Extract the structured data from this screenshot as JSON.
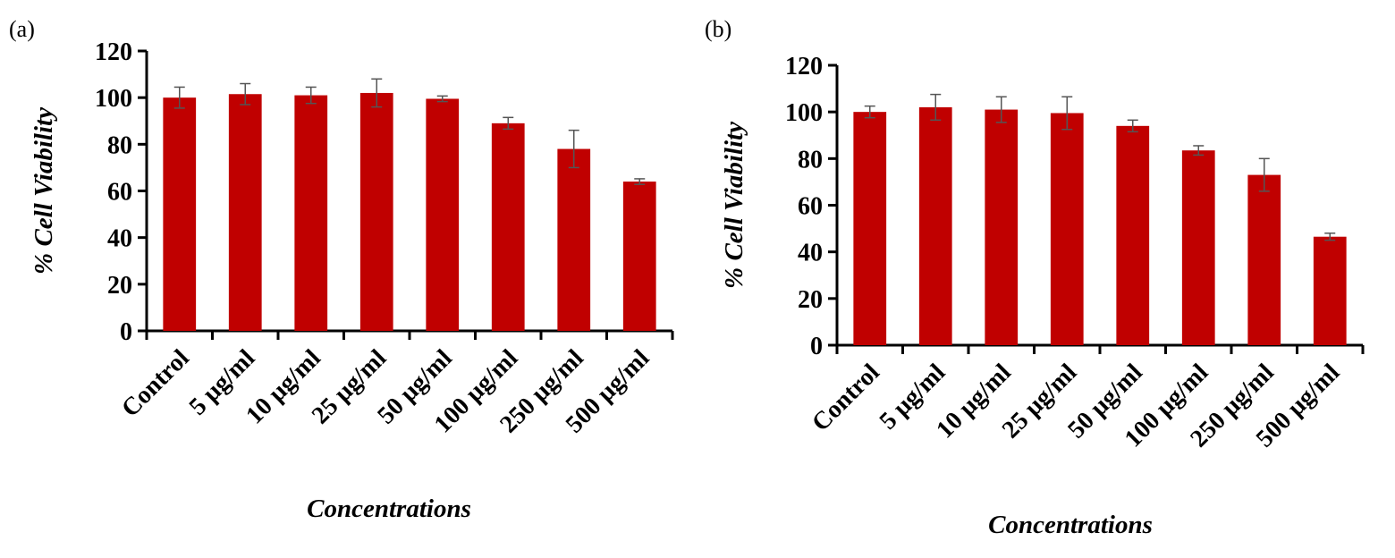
{
  "panels": [
    {
      "label": "(a)"
    },
    {
      "label": "(b)"
    }
  ],
  "colors": {
    "bar": "#c00000",
    "error_bar": "#555555",
    "axis": "#000000"
  },
  "chart_data": [
    {
      "type": "bar",
      "panel": "(a)",
      "categories": [
        "Control",
        "5 µg/ml",
        "10 µg/ml",
        "25 µg/ml",
        "50 µg/ml",
        "100 µg/ml",
        "250 µg/ml",
        "500 µg/ml"
      ],
      "values": [
        100,
        101.5,
        101,
        102,
        99.5,
        89,
        78,
        64
      ],
      "errors": [
        4.5,
        4.5,
        3.5,
        6,
        1.2,
        2.5,
        8,
        1.2
      ],
      "xlabel": "Concentrations",
      "ylabel": "% Cell Viability",
      "ylim": [
        0,
        120
      ],
      "yticks": [
        0,
        20,
        40,
        60,
        80,
        100,
        120
      ],
      "grid": false,
      "legend": false
    },
    {
      "type": "bar",
      "panel": "(b)",
      "categories": [
        "Control",
        "5 µg/ml",
        "10 µg/ml",
        "25 µg/ml",
        "50 µg/ml",
        "100 µg/ml",
        "250 µg/ml",
        "500 µg/ml"
      ],
      "values": [
        100,
        102,
        101,
        99.5,
        94,
        83.5,
        73,
        46.5
      ],
      "errors": [
        2.5,
        5.5,
        5.5,
        7,
        2.5,
        2,
        7,
        1.5
      ],
      "xlabel": "Concentrations",
      "ylabel": "% Cell Viability",
      "ylim": [
        0,
        120
      ],
      "yticks": [
        0,
        20,
        40,
        60,
        80,
        100,
        120
      ],
      "grid": false,
      "legend": false
    }
  ]
}
